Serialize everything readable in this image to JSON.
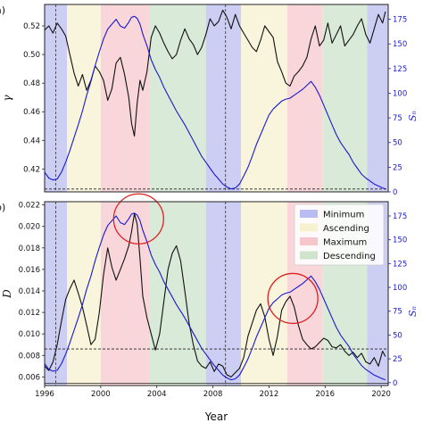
{
  "chart_data": [
    {
      "panel_label": "a)",
      "type": "line",
      "xlabel": "",
      "ylabel": "γ",
      "ylabel2": "Sₙ",
      "xlim": [
        1996,
        2020.5
      ],
      "ylim": [
        0.404,
        0.535
      ],
      "ylim2": [
        0,
        190
      ],
      "yticks": [
        "0.42",
        "0.44",
        "0.46",
        "0.48",
        "0.50",
        "0.52"
      ],
      "yticks_values": [
        0.42,
        0.44,
        0.46,
        0.48,
        0.5,
        0.52
      ],
      "yticks2": [
        "0",
        "25",
        "50",
        "75",
        "100",
        "125",
        "150",
        "175"
      ],
      "yticks2_values": [
        0,
        25,
        50,
        75,
        100,
        125,
        150,
        175
      ],
      "phases": [
        {
          "phase": "Minimum",
          "from": 1996.0,
          "to": 1997.6
        },
        {
          "phase": "Ascending",
          "from": 1997.6,
          "to": 2000.0
        },
        {
          "phase": "Maximum",
          "from": 2000.0,
          "to": 2003.5
        },
        {
          "phase": "Descending",
          "from": 2003.5,
          "to": 2007.5
        },
        {
          "phase": "Minimum",
          "from": 2007.5,
          "to": 2010.0
        },
        {
          "phase": "Ascending",
          "from": 2010.0,
          "to": 2013.3
        },
        {
          "phase": "Maximum",
          "from": 2013.3,
          "to": 2015.8
        },
        {
          "phase": "Descending",
          "from": 2015.8,
          "to": 2019.0
        },
        {
          "phase": "Minimum",
          "from": 2019.0,
          "to": 2020.5
        }
      ],
      "vlines": [
        1996.8,
        2008.9
      ],
      "hline": 0.406,
      "series": [
        {
          "axis": "left",
          "color": "#111111",
          "x": [
            1996.0,
            1996.3,
            1996.6,
            1996.9,
            1997.2,
            1997.5,
            1997.8,
            1998.1,
            1998.4,
            1998.7,
            1999.0,
            1999.3,
            1999.6,
            1999.9,
            2000.2,
            2000.5,
            2000.8,
            2001.1,
            2001.4,
            2001.7,
            2002.0,
            2002.2,
            2002.4,
            2002.6,
            2002.8,
            2003.0,
            2003.3,
            2003.6,
            2003.9,
            2004.2,
            2004.5,
            2004.8,
            2005.1,
            2005.4,
            2005.7,
            2006.0,
            2006.3,
            2006.6,
            2006.9,
            2007.2,
            2007.5,
            2007.8,
            2008.1,
            2008.4,
            2008.7,
            2009.0,
            2009.3,
            2009.6,
            2009.9,
            2010.2,
            2010.5,
            2010.8,
            2011.1,
            2011.4,
            2011.7,
            2012.0,
            2012.3,
            2012.6,
            2012.9,
            2013.2,
            2013.5,
            2013.8,
            2014.1,
            2014.4,
            2014.7,
            2015.0,
            2015.3,
            2015.6,
            2015.9,
            2016.2,
            2016.5,
            2016.8,
            2017.1,
            2017.4,
            2017.7,
            2018.0,
            2018.3,
            2018.6,
            2018.9,
            2019.2,
            2019.5,
            2019.8,
            2020.1,
            2020.3
          ],
          "y": [
            0.517,
            0.52,
            0.515,
            0.522,
            0.518,
            0.513,
            0.5,
            0.487,
            0.478,
            0.486,
            0.475,
            0.482,
            0.492,
            0.488,
            0.482,
            0.468,
            0.476,
            0.494,
            0.498,
            0.486,
            0.47,
            0.452,
            0.443,
            0.466,
            0.482,
            0.475,
            0.488,
            0.512,
            0.52,
            0.515,
            0.508,
            0.502,
            0.497,
            0.5,
            0.51,
            0.518,
            0.511,
            0.507,
            0.5,
            0.505,
            0.514,
            0.525,
            0.52,
            0.523,
            0.531,
            0.526,
            0.518,
            0.528,
            0.52,
            0.515,
            0.51,
            0.505,
            0.502,
            0.51,
            0.52,
            0.516,
            0.512,
            0.495,
            0.488,
            0.48,
            0.478,
            0.485,
            0.488,
            0.492,
            0.498,
            0.511,
            0.52,
            0.506,
            0.51,
            0.522,
            0.508,
            0.514,
            0.52,
            0.506,
            0.51,
            0.514,
            0.52,
            0.525,
            0.514,
            0.508,
            0.518,
            0.528,
            0.522,
            0.53
          ]
        },
        {
          "axis": "right",
          "color": "#1a1ad0",
          "x": [
            1996.0,
            1996.3,
            1996.6,
            1996.9,
            1997.2,
            1997.5,
            1997.8,
            1998.1,
            1998.4,
            1998.7,
            1999.0,
            1999.3,
            1999.6,
            1999.9,
            2000.2,
            2000.5,
            2000.8,
            2001.1,
            2001.4,
            2001.7,
            2002.0,
            2002.2,
            2002.4,
            2002.6,
            2002.8,
            2003.0,
            2003.3,
            2003.6,
            2003.9,
            2004.2,
            2004.5,
            2004.8,
            2005.1,
            2005.4,
            2005.7,
            2006.0,
            2006.3,
            2006.6,
            2006.9,
            2007.2,
            2007.5,
            2007.8,
            2008.1,
            2008.4,
            2008.7,
            2009.0,
            2009.3,
            2009.6,
            2009.9,
            2010.2,
            2010.5,
            2010.8,
            2011.1,
            2011.4,
            2011.7,
            2012.0,
            2012.3,
            2012.6,
            2012.9,
            2013.2,
            2013.5,
            2013.8,
            2014.1,
            2014.4,
            2014.7,
            2015.0,
            2015.3,
            2015.6,
            2015.9,
            2016.2,
            2016.5,
            2016.8,
            2017.1,
            2017.4,
            2017.7,
            2018.0,
            2018.3,
            2018.6,
            2018.9,
            2019.2,
            2019.5,
            2019.8,
            2020.1,
            2020.3
          ],
          "y": [
            20,
            14,
            12,
            13,
            20,
            30,
            42,
            55,
            68,
            82,
            98,
            112,
            128,
            142,
            155,
            165,
            170,
            175,
            168,
            166,
            172,
            177,
            178,
            176,
            170,
            160,
            148,
            134,
            124,
            116,
            106,
            98,
            90,
            82,
            75,
            68,
            60,
            52,
            44,
            36,
            30,
            24,
            18,
            13,
            8,
            5,
            3,
            4,
            8,
            16,
            25,
            36,
            48,
            58,
            68,
            78,
            84,
            88,
            92,
            94,
            95,
            98,
            101,
            104,
            108,
            112,
            106,
            98,
            88,
            78,
            68,
            58,
            50,
            44,
            38,
            30,
            24,
            18,
            14,
            11,
            8,
            6,
            4,
            3
          ]
        }
      ]
    },
    {
      "panel_label": "b)",
      "type": "line",
      "xlabel": "Year",
      "ylabel": "D",
      "ylabel2": "Sₙ",
      "xlim": [
        1996,
        2020.5
      ],
      "ylim": [
        0.0052,
        0.0223
      ],
      "ylim2": [
        -3,
        190
      ],
      "xticks": [
        "1996",
        "2000",
        "2004",
        "2008",
        "2012",
        "2016",
        "2020"
      ],
      "xticks_values": [
        1996,
        2000,
        2004,
        2008,
        2012,
        2016,
        2020
      ],
      "yticks": [
        "0.006",
        "0.008",
        "0.010",
        "0.012",
        "0.014",
        "0.016",
        "0.018",
        "0.020",
        "0.022"
      ],
      "yticks_values": [
        0.006,
        0.008,
        0.01,
        0.012,
        0.014,
        0.016,
        0.018,
        0.02,
        0.022
      ],
      "yticks2": [
        "0",
        "25",
        "50",
        "75",
        "100",
        "125",
        "150",
        "175"
      ],
      "yticks2_values": [
        0,
        25,
        50,
        75,
        100,
        125,
        150,
        175
      ],
      "hlines": [
        0.0086,
        0.0054
      ],
      "vlines": [
        1996.8,
        2008.9
      ],
      "annotations": [
        {
          "shape": "circle",
          "x": 2002.7,
          "y": 0.0207
        },
        {
          "shape": "circle",
          "x": 2013.7,
          "y": 0.0133
        }
      ],
      "legend": {
        "placement": "top-right",
        "entries": [
          {
            "label": "Minimum",
            "color": "#b9bdf2"
          },
          {
            "label": "Ascending",
            "color": "#f6f1cf"
          },
          {
            "label": "Maximum",
            "color": "#f6c6cc"
          },
          {
            "label": "Descending",
            "color": "#cfe3cd"
          }
        ]
      },
      "series": [
        {
          "axis": "left",
          "color": "#111111",
          "x": [
            1996.0,
            1996.3,
            1996.6,
            1996.9,
            1997.2,
            1997.5,
            1997.8,
            1998.1,
            1998.4,
            1998.7,
            1999.0,
            1999.3,
            1999.6,
            1999.9,
            2000.2,
            2000.5,
            2000.8,
            2001.1,
            2001.4,
            2001.7,
            2002.0,
            2002.2,
            2002.4,
            2002.6,
            2002.8,
            2003.0,
            2003.3,
            2003.6,
            2003.9,
            2004.2,
            2004.5,
            2004.8,
            2005.1,
            2005.4,
            2005.7,
            2006.0,
            2006.3,
            2006.6,
            2006.9,
            2007.2,
            2007.5,
            2007.8,
            2008.1,
            2008.4,
            2008.7,
            2009.0,
            2009.3,
            2009.6,
            2009.9,
            2010.2,
            2010.5,
            2010.8,
            2011.1,
            2011.4,
            2011.7,
            2012.0,
            2012.3,
            2012.6,
            2012.9,
            2013.2,
            2013.5,
            2013.8,
            2014.1,
            2014.4,
            2014.7,
            2015.0,
            2015.3,
            2015.6,
            2015.9,
            2016.2,
            2016.5,
            2016.8,
            2017.1,
            2017.4,
            2017.7,
            2018.0,
            2018.3,
            2018.6,
            2018.9,
            2019.2,
            2019.5,
            2019.8,
            2020.1,
            2020.3
          ],
          "y": [
            0.007,
            0.0066,
            0.0074,
            0.009,
            0.0112,
            0.0132,
            0.0142,
            0.015,
            0.0138,
            0.0125,
            0.0108,
            0.009,
            0.0095,
            0.012,
            0.0155,
            0.018,
            0.0162,
            0.015,
            0.016,
            0.017,
            0.0182,
            0.0195,
            0.0212,
            0.0202,
            0.017,
            0.0135,
            0.0115,
            0.01,
            0.0085,
            0.01,
            0.013,
            0.016,
            0.0175,
            0.0182,
            0.0168,
            0.014,
            0.011,
            0.009,
            0.0075,
            0.007,
            0.0068,
            0.0074,
            0.0065,
            0.0072,
            0.007,
            0.0062,
            0.006,
            0.0064,
            0.0068,
            0.0078,
            0.0098,
            0.011,
            0.0122,
            0.0128,
            0.0116,
            0.0095,
            0.008,
            0.0098,
            0.0122,
            0.013,
            0.0135,
            0.0125,
            0.0108,
            0.0095,
            0.009,
            0.0086,
            0.0088,
            0.0092,
            0.0096,
            0.0094,
            0.0088,
            0.0087,
            0.009,
            0.0084,
            0.008,
            0.0083,
            0.0078,
            0.0082,
            0.0074,
            0.0072,
            0.0078,
            0.007,
            0.0084,
            0.0079
          ]
        },
        {
          "axis": "right",
          "color": "#1a1ad0",
          "x": [
            1996.0,
            1996.3,
            1996.6,
            1996.9,
            1997.2,
            1997.5,
            1997.8,
            1998.1,
            1998.4,
            1998.7,
            1999.0,
            1999.3,
            1999.6,
            1999.9,
            2000.2,
            2000.5,
            2000.8,
            2001.1,
            2001.4,
            2001.7,
            2002.0,
            2002.2,
            2002.4,
            2002.6,
            2002.8,
            2003.0,
            2003.3,
            2003.6,
            2003.9,
            2004.2,
            2004.5,
            2004.8,
            2005.1,
            2005.4,
            2005.7,
            2006.0,
            2006.3,
            2006.6,
            2006.9,
            2007.2,
            2007.5,
            2007.8,
            2008.1,
            2008.4,
            2008.7,
            2009.0,
            2009.3,
            2009.6,
            2009.9,
            2010.2,
            2010.5,
            2010.8,
            2011.1,
            2011.4,
            2011.7,
            2012.0,
            2012.3,
            2012.6,
            2012.9,
            2013.2,
            2013.5,
            2013.8,
            2014.1,
            2014.4,
            2014.7,
            2015.0,
            2015.3,
            2015.6,
            2015.9,
            2016.2,
            2016.5,
            2016.8,
            2017.1,
            2017.4,
            2017.7,
            2018.0,
            2018.3,
            2018.6,
            2018.9,
            2019.2,
            2019.5,
            2019.8,
            2020.1,
            2020.3
          ],
          "y": [
            20,
            14,
            12,
            13,
            20,
            30,
            42,
            55,
            68,
            82,
            98,
            112,
            128,
            142,
            155,
            165,
            170,
            175,
            168,
            166,
            172,
            177,
            178,
            176,
            170,
            160,
            148,
            134,
            124,
            116,
            106,
            98,
            90,
            82,
            75,
            68,
            60,
            52,
            44,
            36,
            30,
            24,
            18,
            13,
            8,
            5,
            3,
            4,
            8,
            16,
            25,
            36,
            48,
            58,
            68,
            78,
            84,
            88,
            92,
            94,
            95,
            98,
            101,
            104,
            108,
            112,
            106,
            98,
            88,
            78,
            68,
            58,
            50,
            44,
            38,
            30,
            24,
            18,
            14,
            11,
            8,
            6,
            4,
            3
          ]
        }
      ]
    }
  ]
}
